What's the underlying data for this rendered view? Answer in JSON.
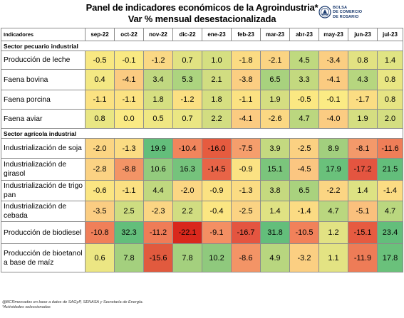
{
  "title": "Panel de indicadores económicos de la Agroindustria*",
  "subtitle": "Var % mensual desestacionalizada",
  "logo": {
    "line1": "BOLSA",
    "line2": "DE COMERCIO",
    "line3": "DE ROSARIO"
  },
  "header": {
    "first": "Indicadores",
    "months": [
      "sep-22",
      "oct-22",
      "nov-22",
      "dic-22",
      "ene-23",
      "feb-23",
      "mar-23",
      "abr-23",
      "may-23",
      "jun-23",
      "jul-23"
    ]
  },
  "sectors": [
    {
      "name": "Sector pecuario industrial",
      "rows": [
        {
          "label": "Producción de leche",
          "values": [
            "-0.5",
            "-0.1",
            "-1.2",
            "0.7",
            "1.0",
            "-1.8",
            "-2.1",
            "4.5",
            "-3.4",
            "0.8",
            "1.4"
          ],
          "colors": [
            "#f8e882",
            "#f9e982",
            "#fad884",
            "#e1e282",
            "#d5df81",
            "#fbdb83",
            "#fbd483",
            "#bfd97f",
            "#fbce82",
            "#e2e282",
            "#e0e483"
          ]
        },
        {
          "label": "Faena bovina",
          "values": [
            "0.4",
            "-4.1",
            "3.4",
            "5.3",
            "2.1",
            "-3.8",
            "6.5",
            "3.3",
            "-4.1",
            "4.3",
            "0.8"
          ],
          "colors": [
            "#f3e883",
            "#fbcb81",
            "#c0d880",
            "#acd47f",
            "#d1dd81",
            "#fbce82",
            "#a8d27e",
            "#c3d97f",
            "#fbcb81",
            "#b6d67f",
            "#e9e683"
          ]
        },
        {
          "label": "Faena porcina",
          "values": [
            "-1.1",
            "-1.1",
            "1.8",
            "-1.2",
            "1.8",
            "-1.1",
            "1.9",
            "-0.5",
            "-0.1",
            "-1.7",
            "0.8"
          ],
          "colors": [
            "#fbe282",
            "#fbe282",
            "#d6df81",
            "#fbe082",
            "#d6df81",
            "#fbe282",
            "#d5de81",
            "#fbe882",
            "#fbeb84",
            "#fbdd83",
            "#e6e483"
          ]
        },
        {
          "label": "Faena aviar",
          "values": [
            "0.8",
            "0.0",
            "0.5",
            "0.7",
            "2.2",
            "-4.1",
            "-2.6",
            "4.7",
            "-4.0",
            "1.9",
            "2.0"
          ],
          "colors": [
            "#e9e683",
            "#faea84",
            "#efe783",
            "#eae683",
            "#d2dd81",
            "#fbcb81",
            "#fbd883",
            "#bbd77f",
            "#fbcc82",
            "#d5de81",
            "#d4de81"
          ]
        }
      ]
    },
    {
      "name": "Sector agrícola industrial",
      "rows": [
        {
          "label": "Industrialización de soja",
          "values": [
            "-2.0",
            "-1.3",
            "19.9",
            "-10.4",
            "-16.0",
            "-7.5",
            "3.9",
            "-2.5",
            "8.9",
            "-8.1",
            "-11.6"
          ],
          "colors": [
            "#fbd583",
            "#fbdc83",
            "#63be7b",
            "#f1855c",
            "#e65b3f",
            "#f59e6c",
            "#c4d980",
            "#fbd182",
            "#a2cf7e",
            "#f3996a",
            "#ef7e58"
          ]
        },
        {
          "label": "Industrialización de girasol",
          "values": [
            "-2.8",
            "-8.8",
            "10.6",
            "16.3",
            "-14.5",
            "-0.9",
            "15.1",
            "-4.5",
            "17.9",
            "-17.2",
            "21.5"
          ],
          "colors": [
            "#fbd283",
            "#f39466",
            "#93cb7d",
            "#75c37c",
            "#e86447",
            "#fbe283",
            "#7bc57c",
            "#fbc681",
            "#6ac17b",
            "#e45540",
            "#63be7b"
          ]
        },
        {
          "label": "Industrialización de trigo pan",
          "values": [
            "-0.6",
            "-1.1",
            "4.4",
            "-2.0",
            "-0.9",
            "-1.3",
            "3.8",
            "6.5",
            "-2.2",
            "1.4",
            "-1.4"
          ],
          "colors": [
            "#fbe582",
            "#fbe082",
            "#c0d87f",
            "#fbd683",
            "#fbe282",
            "#fbdc83",
            "#c5d97f",
            "#a9d27e",
            "#fbd583",
            "#dde283",
            "#fbdc83"
          ]
        },
        {
          "label": "Industrialización de cebada",
          "values": [
            "-3.5",
            "2.5",
            "-2.3",
            "2.2",
            "-0.4",
            "-2.5",
            "1.4",
            "-1.4",
            "4.7",
            "-5.1",
            "4.7"
          ],
          "colors": [
            "#fbcd82",
            "#cedd81",
            "#fbd583",
            "#d1dd81",
            "#fbe682",
            "#fbd383",
            "#dfe283",
            "#fbdb83",
            "#bad77f",
            "#fac07d",
            "#bad77f"
          ]
        },
        {
          "label": "Producción de biodiesel",
          "values": [
            "-10.8",
            "32.3",
            "-11.2",
            "-22.1",
            "-9.1",
            "-16.7",
            "31.8",
            "-10.5",
            "1.2",
            "-15.1",
            "23.4"
          ],
          "colors": [
            "#f07f59",
            "#63be7b",
            "#ef7c57",
            "#d9281c",
            "#f48f63",
            "#e45540",
            "#63be7b",
            "#f1815a",
            "#e2e283",
            "#e65b41",
            "#63be7b"
          ]
        },
        {
          "label": "Producción de bioetanol a base de maíz",
          "values": [
            "0.6",
            "7.8",
            "-15.6",
            "7.8",
            "10.2",
            "-8.6",
            "4.9",
            "-3.2",
            "1.1",
            "-11.9",
            "17.8"
          ],
          "colors": [
            "#ece683",
            "#a4d07e",
            "#e15a3e",
            "#a4d07e",
            "#8fc97d",
            "#f39466",
            "#b8d67f",
            "#fbcf82",
            "#e3e383",
            "#ee7c57",
            "#6ac17b"
          ]
        }
      ]
    }
  ],
  "footer": {
    "line1": "@BCRmercados en base a datos de SAGyP, SENASA y Secretaría de Energía.",
    "line2": "*Actividades seleccionadas"
  }
}
